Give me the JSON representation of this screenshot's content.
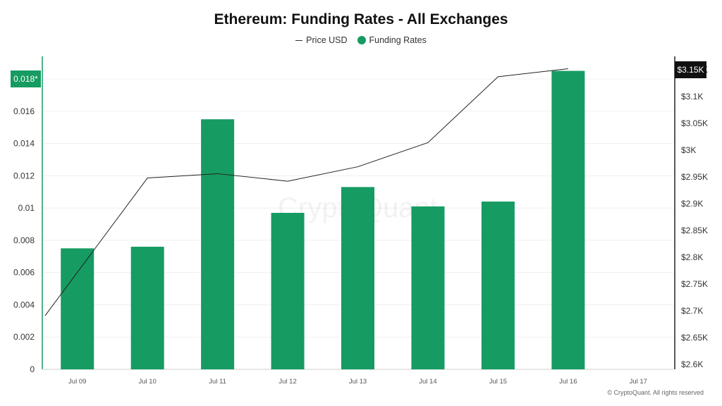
{
  "chart_data": {
    "type": "bar",
    "title": "Ethereum: Funding Rates - All Exchanges",
    "legend": [
      "Price USD",
      "Funding Rates"
    ],
    "legend_position": "top-center",
    "categories": [
      "Jul 09",
      "Jul 10",
      "Jul 11",
      "Jul 12",
      "Jul 13",
      "Jul 14",
      "Jul 15",
      "Jul 16",
      "Jul 17"
    ],
    "series": [
      {
        "name": "Funding Rates",
        "type": "bar",
        "axis": "left",
        "color": "#169b62",
        "values": [
          0.0075,
          0.0076,
          0.0155,
          0.0097,
          0.0113,
          0.0101,
          0.0104,
          0.0185,
          null
        ]
      },
      {
        "name": "Price USD",
        "type": "line",
        "axis": "right",
        "color": "#222222",
        "values": [
          2691,
          2948,
          2956,
          2942,
          2969,
          3014,
          3137,
          3152,
          null
        ]
      }
    ],
    "y_left": {
      "ticks": [
        "0",
        "0.002",
        "0.004",
        "0.006",
        "0.008",
        "0.01",
        "0.012",
        "0.014",
        "0.016",
        "0.018"
      ],
      "range": [
        0,
        0.018
      ],
      "current_label": "0.018*"
    },
    "y_right": {
      "ticks": [
        "$2.6K",
        "$2.65K",
        "$2.7K",
        "$2.75K",
        "$2.8K",
        "$2.85K",
        "$2.9K",
        "$2.95K",
        "$3K",
        "$3.05K",
        "$3.1K",
        "$3.15K"
      ],
      "range": [
        2600,
        3150
      ],
      "current_label": "$3.15K"
    },
    "grid": true,
    "watermark": "CryptoQuant"
  },
  "copyright": "© CryptoQuant. All rights reserved"
}
